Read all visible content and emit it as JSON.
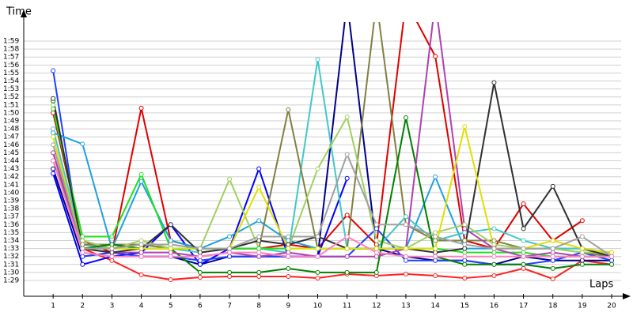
{
  "chart_data": {
    "type": "line",
    "ylabel": "Time",
    "xlabel": "Laps",
    "x": [
      1,
      2,
      3,
      4,
      5,
      6,
      7,
      8,
      9,
      10,
      11,
      12,
      13,
      14,
      15,
      16,
      17,
      18,
      19,
      20
    ],
    "xlim": [
      0,
      20.5
    ],
    "xticks": [
      1,
      2,
      3,
      4,
      5,
      6,
      7,
      8,
      9,
      10,
      11,
      12,
      13,
      14,
      15,
      16,
      17,
      18,
      19,
      20
    ],
    "ylim": [
      87,
      121.4
    ],
    "yticks": [
      {
        "value": 89,
        "label": "1:29"
      },
      {
        "value": 90,
        "label": "1:30"
      },
      {
        "value": 91,
        "label": "1:31"
      },
      {
        "value": 92,
        "label": "1:32"
      },
      {
        "value": 93,
        "label": "1:33"
      },
      {
        "value": 94,
        "label": "1:34"
      },
      {
        "value": 95,
        "label": "1:35"
      },
      {
        "value": 96,
        "label": "1:36"
      },
      {
        "value": 97,
        "label": "1:37"
      },
      {
        "value": 98,
        "label": "1:38"
      },
      {
        "value": 99,
        "label": "1:39"
      },
      {
        "value": 100,
        "label": "1:40"
      },
      {
        "value": 101,
        "label": "1:41"
      },
      {
        "value": 102,
        "label": "1:42"
      },
      {
        "value": 103,
        "label": "1:43"
      },
      {
        "value": 104,
        "label": "1:44"
      },
      {
        "value": 105,
        "label": "1:45"
      },
      {
        "value": 106,
        "label": "1:46"
      },
      {
        "value": 107,
        "label": "1:47"
      },
      {
        "value": 108,
        "label": "1:48"
      },
      {
        "value": 109,
        "label": "1:49"
      },
      {
        "value": 110,
        "label": "1:50"
      },
      {
        "value": 111,
        "label": "1:51"
      },
      {
        "value": 112,
        "label": "1:52"
      },
      {
        "value": 113,
        "label": "1:53"
      },
      {
        "value": 114,
        "label": "1:54"
      },
      {
        "value": 115,
        "label": "1:55"
      },
      {
        "value": 116,
        "label": "1:56"
      },
      {
        "value": 117,
        "label": "1:57"
      },
      {
        "value": 118,
        "label": "1:58"
      },
      {
        "value": 119,
        "label": "1:59"
      }
    ],
    "grid": true,
    "series": [
      {
        "color": "#e00000",
        "values": [
          110,
          94,
          92.5,
          110.6,
          94,
          93,
          93,
          93,
          93.5,
          93,
          97.2,
          93.5,
          124,
          117.1,
          94,
          93,
          98.6,
          94,
          96.5,
          null
        ]
      },
      {
        "color": "#ff2020",
        "values": [
          105,
          93,
          91.5,
          89.7,
          89.1,
          89.4,
          89.5,
          89.5,
          89.5,
          89.3,
          89.8,
          89.6,
          89.8,
          89.6,
          89.3,
          89.6,
          90.5,
          89.2,
          91.5,
          91
        ]
      },
      {
        "color": "#00008b",
        "values": [
          103,
          92,
          92.5,
          92,
          92,
          91,
          92,
          92,
          92,
          92,
          124,
          93,
          92,
          91.5,
          91.5,
          91,
          92,
          91.5,
          91.5,
          91.5
        ]
      },
      {
        "color": "#0000ff",
        "values": [
          102.4,
          91,
          92,
          92.5,
          96,
          91,
          93,
          103,
          92,
          92,
          101.8,
          null,
          null,
          null,
          null,
          null,
          null,
          null,
          null,
          null
        ]
      },
      {
        "color": "#2040ff",
        "values": [
          115.3,
          92,
          92.5,
          92,
          92,
          91.5,
          92,
          92,
          92,
          92,
          92,
          95.5,
          91.5,
          91.5,
          91.5,
          91,
          91,
          91.5,
          92.5,
          91.5
        ]
      },
      {
        "color": "#20a0e0",
        "values": [
          107.5,
          106.1,
          93,
          101.4,
          94,
          93,
          94.5,
          96.5,
          94,
          93,
          93,
          93,
          93,
          102,
          93,
          93,
          93,
          93,
          93,
          92
        ]
      },
      {
        "color": "#40c8c8",
        "values": [
          108,
          93.5,
          93,
          93,
          93,
          92.5,
          93,
          93,
          92.5,
          116.7,
          93,
          93,
          97,
          94,
          95,
          95.5,
          94,
          93,
          93,
          92.5
        ]
      },
      {
        "color": "#808040",
        "values": [
          104,
          93.5,
          93.5,
          93.5,
          93,
          93,
          93,
          93,
          110.4,
          93,
          93,
          124,
          96,
          94,
          94,
          94,
          93,
          93,
          92.5,
          92
        ]
      },
      {
        "color": "#a0d060",
        "values": [
          111,
          94,
          93,
          94,
          93,
          93,
          101.7,
          93,
          93,
          103,
          109.5,
          94,
          93,
          95,
          96,
          93.5,
          93,
          93,
          92.5,
          92.5
        ]
      },
      {
        "color": "#008000",
        "values": [
          111.5,
          93,
          93.5,
          93,
          93,
          90,
          90,
          90,
          90.5,
          90,
          90,
          90,
          109.4,
          92,
          91,
          91,
          91,
          90.5,
          91,
          91
        ]
      },
      {
        "color": "#20e020",
        "values": [
          110.5,
          94.5,
          94.5,
          102.3,
          93,
          93,
          93,
          93,
          93,
          93,
          93,
          93,
          93,
          93,
          92.5,
          92.5,
          92.5,
          92,
          92,
          92
        ]
      },
      {
        "color": "#b040b0",
        "values": [
          105,
          93,
          92.5,
          92.5,
          92.5,
          92,
          92.5,
          92,
          92.5,
          92,
          92,
          92,
          93,
          124,
          95.5,
          93,
          92,
          92.5,
          92,
          92
        ]
      },
      {
        "color": "#303030",
        "values": [
          111.8,
          93,
          92.5,
          93,
          96,
          92.5,
          93,
          94,
          93.5,
          94.5,
          93,
          93,
          93,
          92.5,
          93,
          113.8,
          95.5,
          100.8,
          93,
          92
        ]
      },
      {
        "color": "#e0e000",
        "values": [
          107,
          93,
          93,
          93,
          93,
          93,
          93,
          100.7,
          93,
          93,
          93,
          93,
          93,
          93,
          108.3,
          93,
          93,
          94,
          93,
          92.5
        ]
      },
      {
        "color": "#a0a0a0",
        "values": [
          106,
          93,
          93,
          93.5,
          93.5,
          93,
          93,
          94.5,
          94.5,
          94.5,
          104.8,
          96,
          96,
          94.5,
          93.5,
          93,
          93,
          93,
          94.5,
          92
        ]
      },
      {
        "color": "#ff80c0",
        "values": [
          104,
          92.5,
          92,
          92,
          92,
          92,
          92.5,
          92.5,
          92,
          92,
          94.5,
          92.5,
          92,
          92,
          92,
          92,
          92,
          92,
          92,
          92
        ]
      }
    ]
  }
}
